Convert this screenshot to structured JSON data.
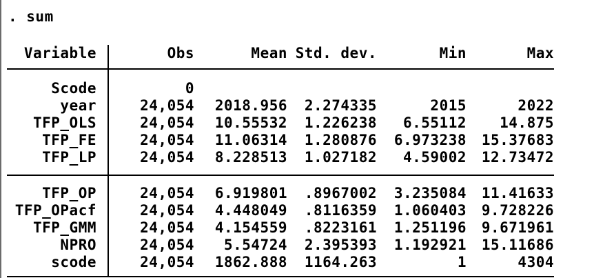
{
  "command": ". sum",
  "table": {
    "headers": [
      "Variable",
      "Obs",
      "Mean",
      "Std. dev.",
      "Min",
      "Max"
    ],
    "groups": [
      {
        "rows": [
          {
            "variable": "Scode",
            "obs": "0",
            "mean": "",
            "std_dev": "",
            "min": "",
            "max": ""
          },
          {
            "variable": "year",
            "obs": "24,054",
            "mean": "2018.956",
            "std_dev": "2.274335",
            "min": "2015",
            "max": "2022"
          },
          {
            "variable": "TFP_OLS",
            "obs": "24,054",
            "mean": "10.55532",
            "std_dev": "1.226238",
            "min": "6.55112",
            "max": "14.875"
          },
          {
            "variable": "TFP_FE",
            "obs": "24,054",
            "mean": "11.06314",
            "std_dev": "1.280876",
            "min": "6.973238",
            "max": "15.37683"
          },
          {
            "variable": "TFP_LP",
            "obs": "24,054",
            "mean": "8.228513",
            "std_dev": "1.027182",
            "min": "4.59002",
            "max": "12.73472"
          }
        ]
      },
      {
        "rows": [
          {
            "variable": "TFP_OP",
            "obs": "24,054",
            "mean": "6.919801",
            "std_dev": ".8967002",
            "min": "3.235084",
            "max": "11.41633"
          },
          {
            "variable": "TFP_OPacf",
            "obs": "24,054",
            "mean": "4.448049",
            "std_dev": ".8116359",
            "min": "1.060403",
            "max": "9.728226"
          },
          {
            "variable": "TFP_GMM",
            "obs": "24,054",
            "mean": "4.154559",
            "std_dev": ".8223161",
            "min": "1.251196",
            "max": "9.671961"
          },
          {
            "variable": "NPRO",
            "obs": "24,054",
            "mean": "5.54724",
            "std_dev": "2.395393",
            "min": "1.192921",
            "max": "15.11686"
          },
          {
            "variable": "scode",
            "obs": "24,054",
            "mean": "1862.888",
            "std_dev": "1164.263",
            "min": "1",
            "max": "4304"
          }
        ]
      }
    ]
  },
  "colors": {
    "text": "#000000",
    "rule": "#000000",
    "window_border": "#6b6b6b",
    "background": "#ffffff"
  }
}
